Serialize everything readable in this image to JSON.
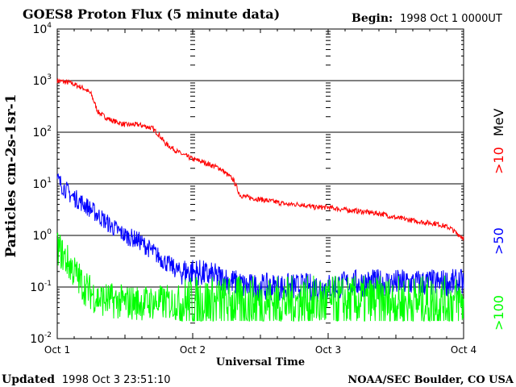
{
  "header": {
    "title": "GOES8 Proton Flux (5 minute data)",
    "begin_label": "Begin:",
    "begin_value": "1998 Oct 1 0000UT"
  },
  "footer": {
    "updated_label": "Updated",
    "updated_value": "1998 Oct  3 23:51:10",
    "source": "NOAA/SEC Boulder, CO USA"
  },
  "colors": {
    "red": "#ff0000",
    "blue": "#0000ff",
    "green": "#00ff00",
    "grid": "#000000"
  },
  "chart_data": {
    "type": "line",
    "title": "GOES8 Proton Flux (5 minute data)",
    "xlabel": "Universal Time",
    "ylabel": "Particles cm-2s-1sr-1",
    "yscale": "log",
    "ylim": [
      0.01,
      10000
    ],
    "xlim_days": [
      0,
      3
    ],
    "x_ticks": [
      "Oct 1",
      "Oct 2",
      "Oct 3",
      "Oct 4"
    ],
    "y_ticks": [
      {
        "base": "10",
        "exp": "-2"
      },
      {
        "base": "10",
        "exp": "-1"
      },
      {
        "base": "10",
        "exp": "0"
      },
      {
        "base": "10",
        "exp": "1"
      },
      {
        "base": "10",
        "exp": "2"
      },
      {
        "base": "10",
        "exp": "3"
      },
      {
        "base": "10",
        "exp": "4"
      }
    ],
    "series": [
      {
        "name": ">10 MeV",
        "label_main": ">10",
        "label_unit": "MeV",
        "color": "#ff0000",
        "x_days": [
          0.0,
          0.1,
          0.2,
          0.25,
          0.3,
          0.35,
          0.4,
          0.5,
          0.6,
          0.7,
          0.75,
          0.8,
          0.9,
          1.0,
          1.05,
          1.1,
          1.2,
          1.3,
          1.35,
          1.4,
          1.5,
          1.6,
          1.7,
          1.8,
          1.9,
          2.0,
          2.1,
          2.2,
          2.3,
          2.4,
          2.5,
          2.6,
          2.7,
          2.8,
          2.9,
          2.95,
          3.0
        ],
        "y": [
          1000,
          900,
          700,
          550,
          250,
          200,
          170,
          140,
          140,
          120,
          90,
          60,
          40,
          30,
          28,
          25,
          20,
          12,
          6,
          5.5,
          5.0,
          4.5,
          4.0,
          4.0,
          3.5,
          3.5,
          3.2,
          3.0,
          2.8,
          2.6,
          2.2,
          2.0,
          1.8,
          1.7,
          1.4,
          1.1,
          0.9
        ]
      },
      {
        "name": ">50 MeV",
        "label_main": ">50",
        "color": "#0000ff",
        "x_days": [
          0.0,
          0.1,
          0.2,
          0.3,
          0.4,
          0.5,
          0.6,
          0.7,
          0.8,
          0.9,
          1.0,
          1.2,
          1.4,
          1.6,
          1.8,
          2.0,
          2.2,
          2.4,
          2.6,
          2.8,
          3.0
        ],
        "y": [
          12,
          6,
          4,
          2.5,
          1.5,
          1.0,
          0.8,
          0.5,
          0.3,
          0.2,
          0.2,
          0.15,
          0.1,
          0.1,
          0.1,
          0.1,
          0.12,
          0.12,
          0.12,
          0.12,
          0.12
        ]
      },
      {
        "name": ">100 MeV",
        "label_main": ">100",
        "color": "#00ff00",
        "x_days": [
          0.0,
          0.1,
          0.2,
          0.3,
          0.5,
          1.0,
          1.5,
          2.0,
          2.5,
          3.0
        ],
        "y": [
          0.6,
          0.25,
          0.1,
          0.06,
          0.05,
          0.05,
          0.05,
          0.05,
          0.05,
          0.05
        ]
      }
    ]
  }
}
